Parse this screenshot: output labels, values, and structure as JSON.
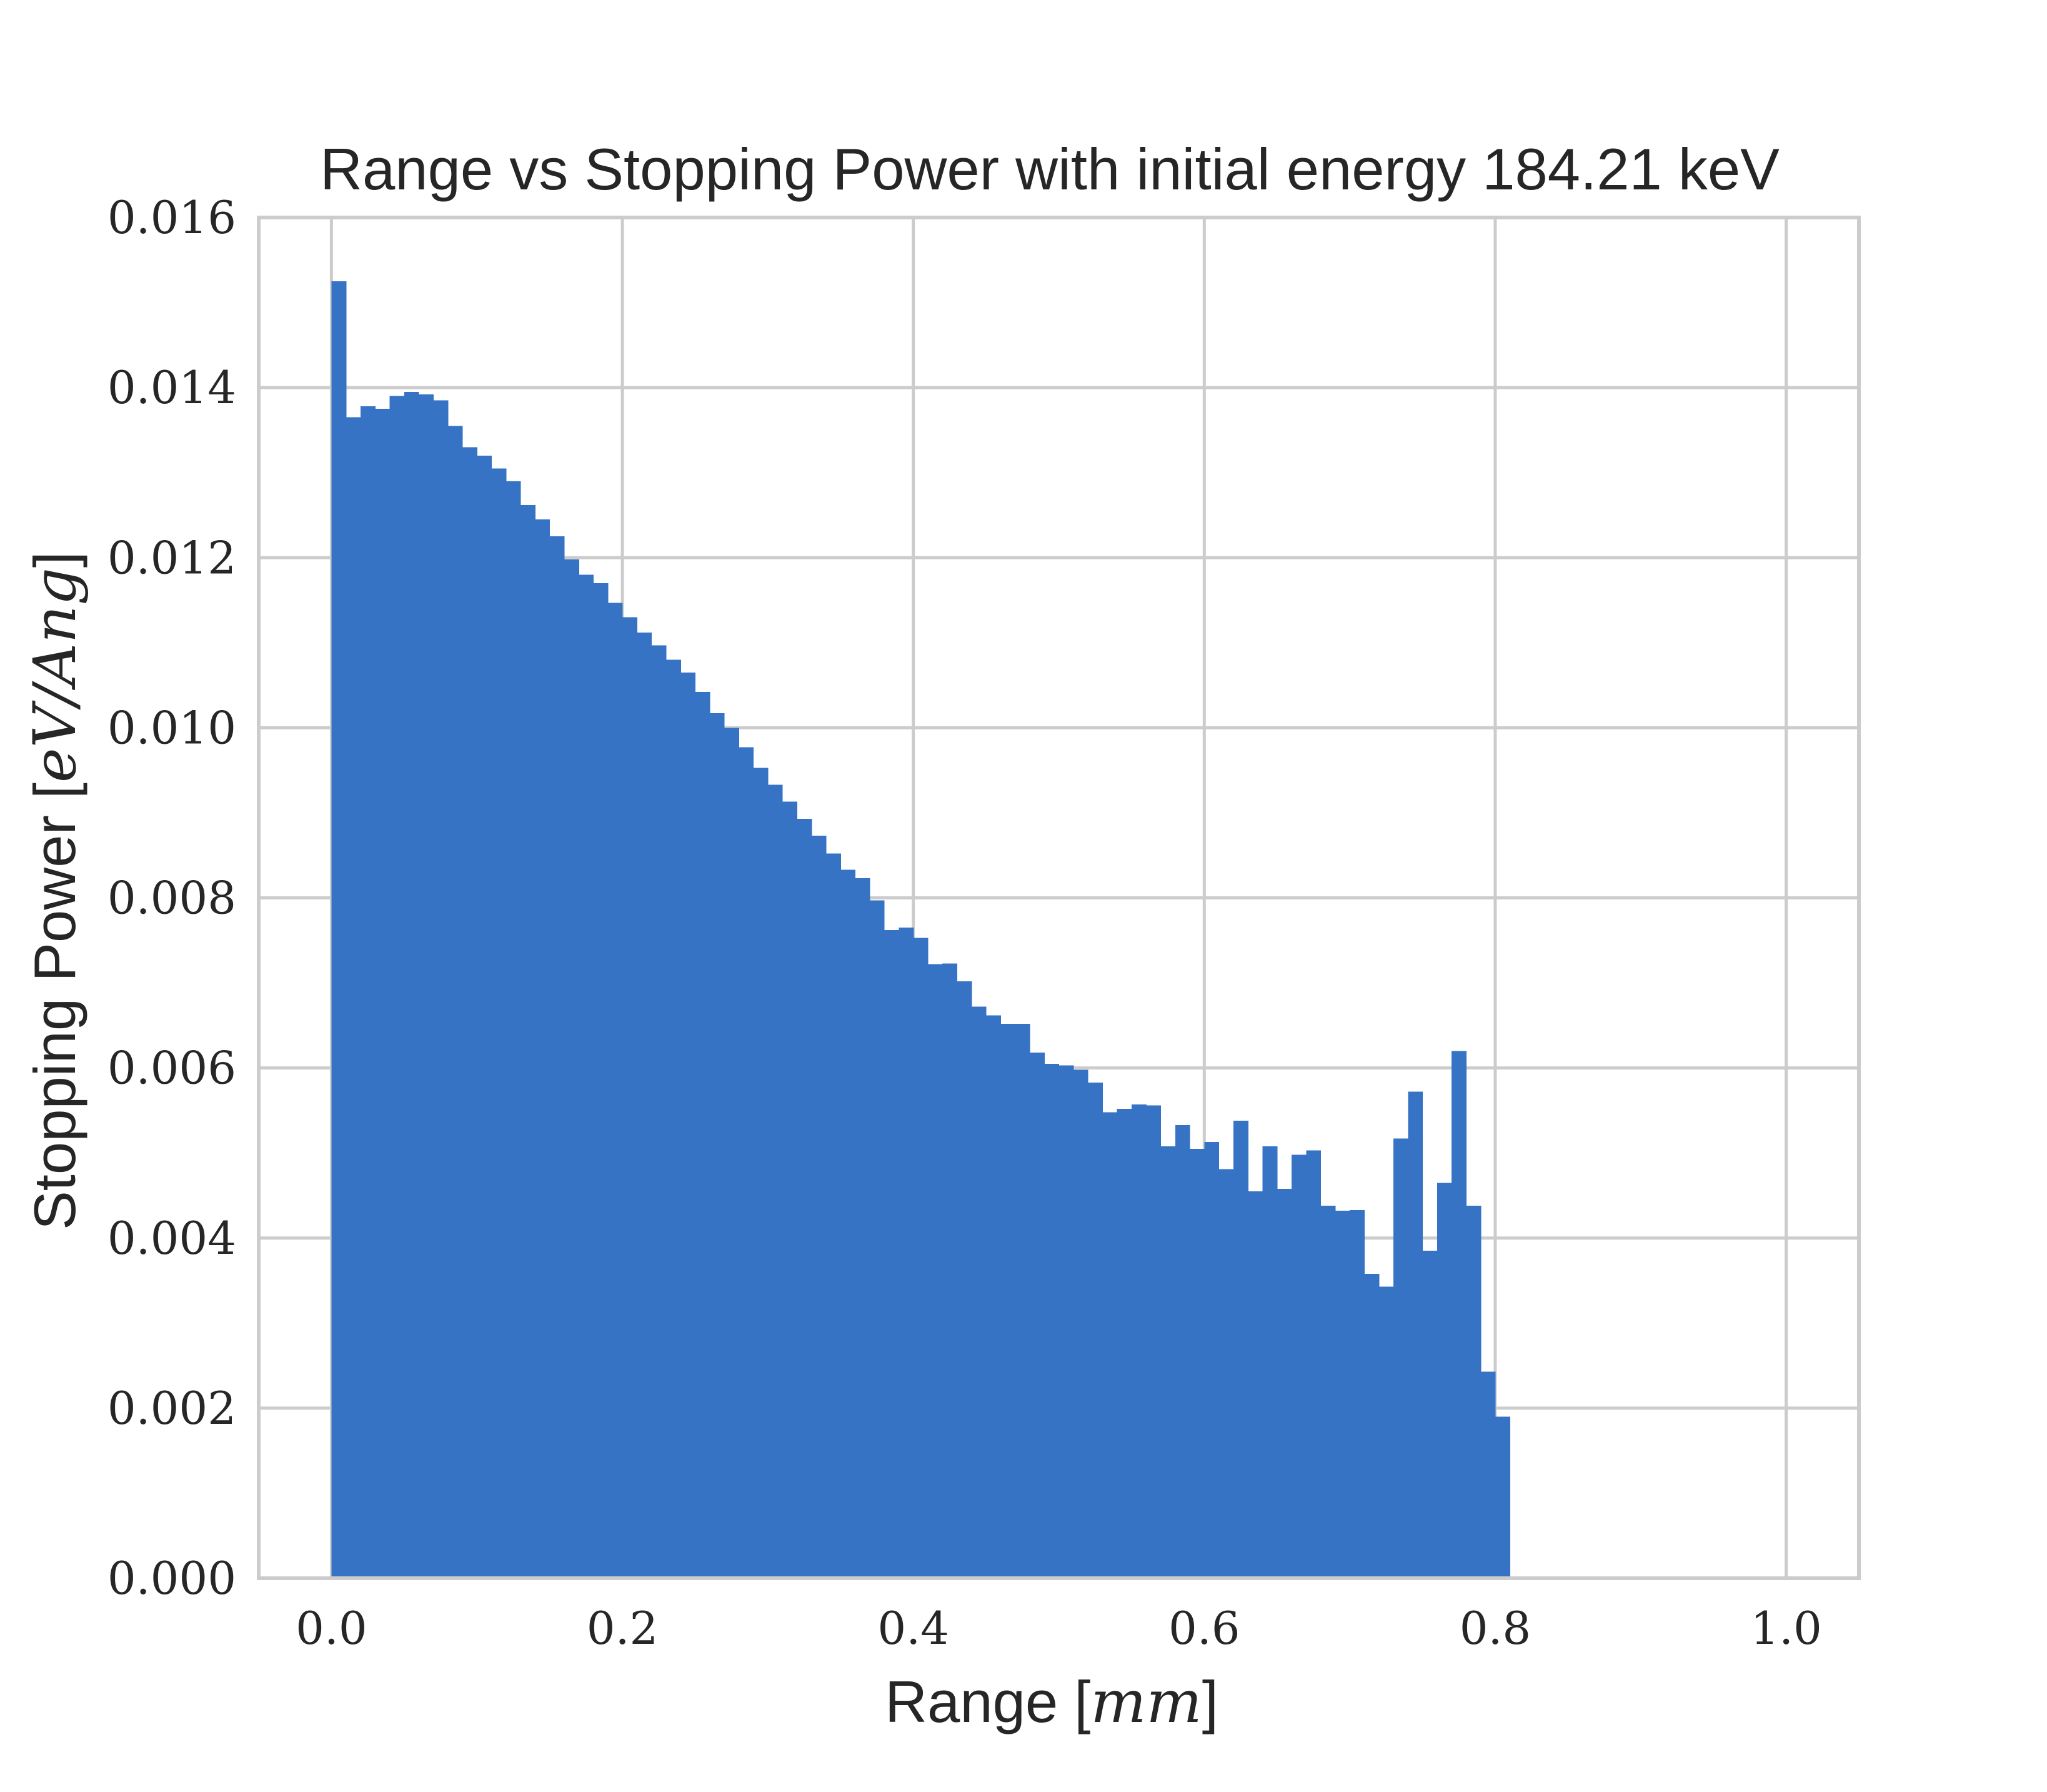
{
  "chart_data": {
    "type": "bar",
    "title": "Range vs Stopping Power with initial energy 184.21 keV",
    "xlabel": {
      "prefix": "Range [",
      "math": "mm",
      "suffix": "]"
    },
    "ylabel": {
      "prefix": "Stopping Power [",
      "math": "eV/Ang",
      "suffix": "]"
    },
    "xlim": [
      -0.05,
      1.05
    ],
    "ylim": [
      0,
      0.016
    ],
    "xticks": [
      0.0,
      0.2,
      0.4,
      0.6,
      0.8,
      1.0
    ],
    "xtick_labels": [
      "0.0",
      "0.2",
      "0.4",
      "0.6",
      "0.8",
      "1.0"
    ],
    "yticks": [
      0,
      0.002,
      0.004,
      0.006,
      0.008,
      0.01,
      0.012,
      0.014,
      0.016
    ],
    "ytick_labels": [
      "0.000",
      "0.002",
      "0.004",
      "0.006",
      "0.008",
      "0.010",
      "0.012",
      "0.014",
      "0.016"
    ],
    "grid": true,
    "bar_color": "#3673c4",
    "grid_color": "#cccccc",
    "bin_start": 0.0,
    "bin_width": 0.01,
    "values": [
      0.01525,
      0.01365,
      0.01378,
      0.01375,
      0.0139,
      0.01395,
      0.01392,
      0.01385,
      0.01355,
      0.0133,
      0.0132,
      0.01305,
      0.0129,
      0.01262,
      0.01245,
      0.01225,
      0.01198,
      0.0118,
      0.0117,
      0.01147,
      0.0113,
      0.01112,
      0.01097,
      0.0108,
      0.01065,
      0.01042,
      0.01017,
      0.01,
      0.00977,
      0.00953,
      0.00933,
      0.00913,
      0.00893,
      0.00873,
      0.00852,
      0.00833,
      0.00823,
      0.00797,
      0.00762,
      0.00765,
      0.00753,
      0.00722,
      0.00723,
      0.00702,
      0.00672,
      0.00662,
      0.00652,
      0.00652,
      0.00618,
      0.00605,
      0.00603,
      0.00598,
      0.00583,
      0.00548,
      0.00552,
      0.00557,
      0.00556,
      0.00508,
      0.00533,
      0.00505,
      0.00513,
      0.00481,
      0.00538,
      0.00455,
      0.00508,
      0.00458,
      0.00498,
      0.00503,
      0.00438,
      0.00432,
      0.00433,
      0.00358,
      0.00343,
      0.00517,
      0.00572,
      0.00385,
      0.00465,
      0.0062,
      0.00438,
      0.00243,
      0.0019
    ]
  }
}
